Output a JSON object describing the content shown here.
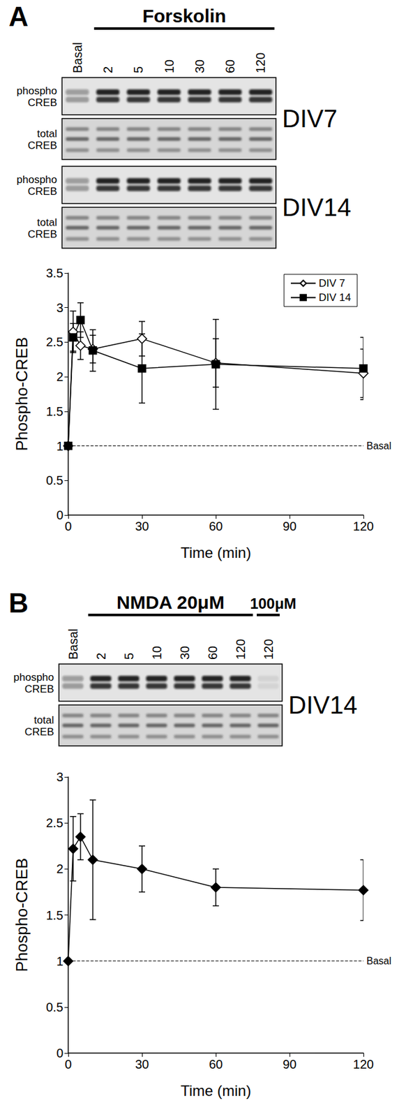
{
  "figure": {
    "panels": [
      {
        "letter": "A",
        "treatment": "Forskolin",
        "lanes": [
          "Basal",
          "2",
          "5",
          "10",
          "30",
          "60",
          "120"
        ],
        "blots": [
          {
            "label": "DIV7",
            "rows": [
              "phospho CREB",
              "total CREB"
            ]
          },
          {
            "label": "DIV14",
            "rows": [
              "phospho CREB",
              "total CREB"
            ]
          }
        ]
      },
      {
        "letter": "B",
        "treatment": "NMDA 20μM",
        "extra_treatment": "100μM",
        "lanes": [
          "Basal",
          "2",
          "5",
          "10",
          "30",
          "60",
          "120"
        ],
        "extra_lanes": [
          "120"
        ],
        "blots": [
          {
            "label": "DIV14",
            "rows": [
              "phospho CREB",
              "total CREB"
            ]
          }
        ]
      }
    ]
  },
  "chart_data": [
    {
      "type": "line",
      "x": [
        0,
        2,
        5,
        10,
        30,
        60,
        120
      ],
      "series": [
        {
          "name": "DIV 7",
          "color": "#000000",
          "marker": "open_diamond",
          "values": [
            1,
            2.65,
            2.45,
            2.4,
            2.55,
            2.2,
            2.05
          ],
          "errors": [
            0,
            0.3,
            0.2,
            0.2,
            0.25,
            0.35,
            0.35
          ]
        },
        {
          "name": "DIV 14",
          "color": "#000000",
          "marker": "square",
          "values": [
            1,
            2.57,
            2.82,
            2.38,
            2.12,
            2.18,
            2.12
          ],
          "errors": [
            0,
            0.2,
            0.25,
            0.3,
            0.5,
            0.65,
            0.45
          ]
        }
      ],
      "x_label": "Time (min)",
      "y_label": "Phospho-CREB",
      "xlim": [
        0,
        120
      ],
      "xticks": [
        0,
        30,
        60,
        90,
        120
      ],
      "ylim": [
        0,
        3.5
      ],
      "yticks": [
        0,
        0.5,
        1,
        1.5,
        2,
        2.5,
        3,
        3.5
      ],
      "grid": false,
      "legend": "top-right",
      "annotations": [
        {
          "y": 1,
          "label": "Basal",
          "line_style": "dashed"
        }
      ]
    },
    {
      "type": "line",
      "x": [
        0,
        2,
        5,
        10,
        30,
        60,
        120
      ],
      "series": [
        {
          "color": "#000000",
          "marker": "diamond",
          "values": [
            1,
            2.22,
            2.35,
            2.1,
            2.0,
            1.8,
            1.77
          ],
          "errors": [
            0,
            0.35,
            0.25,
            0.65,
            0.25,
            0.2,
            0.33
          ]
        }
      ],
      "x_label": "Time (min)",
      "y_label": "Phospho-CREB",
      "xlim": [
        0,
        120
      ],
      "xticks": [
        0,
        30,
        60,
        90,
        120
      ],
      "ylim": [
        0,
        3
      ],
      "yticks": [
        0,
        0.5,
        1,
        1.5,
        2,
        2.5,
        3
      ],
      "grid": false,
      "annotations": [
        {
          "y": 1,
          "label": "Basal",
          "line_style": "dashed"
        }
      ]
    }
  ]
}
